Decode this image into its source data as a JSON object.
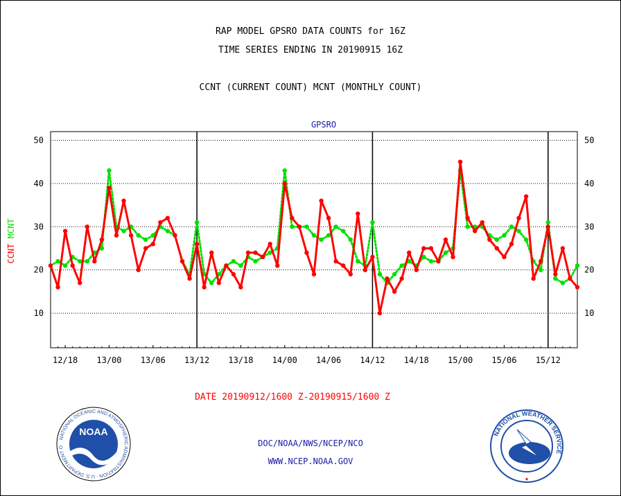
{
  "header": {
    "line1": "RAP MODEL GPSRO DATA COUNTS for 16Z",
    "line2": "TIME SERIES ENDING IN 20190915 16Z",
    "line3": "CCNT (CURRENT COUNT) MCNT (MONTHLY COUNT)"
  },
  "footer": {
    "date_range": "DATE 20190912/1600 Z-20190915/1600 Z",
    "org": "DOC/NOAA/NWS/NCEP/NCO",
    "url": "WWW.NCEP.NOAA.GOV"
  },
  "logos": {
    "left": {
      "name": "NOAA",
      "ring_text": "NATIONAL OCEANIC AND ATMOSPHERIC ADMINISTRATION · U.S. DEPARTMENT OF COMMERCE",
      "color": "#1f4fa8"
    },
    "right": {
      "ring_text": "NATIONAL WEATHER SERVICE",
      "color": "#1f4fa8"
    }
  },
  "chart_data": {
    "type": "line",
    "title": "GPSRO",
    "ylabel_parts": [
      {
        "text": "CCNT",
        "color": "#ff0000"
      },
      {
        "text": "MCNT",
        "color": "#00e000"
      }
    ],
    "ylim": [
      2,
      52
    ],
    "yticks": [
      10,
      20,
      30,
      40,
      50
    ],
    "grid": true,
    "x_hours_per_point": 1,
    "x_tick_labels": [
      "12/18",
      "13/00",
      "13/06",
      "13/12",
      "13/18",
      "14/00",
      "14/06",
      "14/12",
      "14/18",
      "15/00",
      "15/06",
      "15/12"
    ],
    "day_boundaries": [
      "13/12",
      "14/12",
      "15/12"
    ],
    "series": [
      {
        "name": "CCNT",
        "color": "#ff0000",
        "style": "solid",
        "values": [
          21,
          16,
          29,
          21,
          17,
          30,
          22,
          27,
          39,
          28,
          36,
          28,
          20,
          25,
          26,
          31,
          32,
          28,
          22,
          18,
          26,
          16,
          24,
          17,
          21,
          19,
          16,
          24,
          24,
          23,
          26,
          21,
          40,
          32,
          30,
          24,
          19,
          36,
          32,
          22,
          21,
          19,
          33,
          20,
          23,
          10,
          18,
          15,
          18,
          24,
          20,
          25,
          25,
          22,
          27,
          23,
          45,
          32,
          29,
          31,
          27,
          25,
          23,
          26,
          32,
          37,
          18,
          22,
          30,
          19,
          25,
          18,
          16
        ]
      },
      {
        "name": "MCNT",
        "color": "#00e000",
        "style": "dotted",
        "values": [
          21,
          22,
          21,
          23,
          22,
          22,
          24,
          25,
          43,
          30,
          29,
          30,
          28,
          27,
          28,
          30,
          29,
          28,
          22,
          19,
          31,
          19,
          17,
          19,
          21,
          22,
          21,
          23,
          22,
          23,
          24,
          25,
          43,
          30,
          30,
          30,
          28,
          27,
          28,
          30,
          29,
          27,
          22,
          21,
          31,
          19,
          17,
          19,
          21,
          22,
          21,
          23,
          22,
          22,
          24,
          25,
          43,
          30,
          30,
          30,
          28,
          27,
          28,
          30,
          29,
          27,
          22,
          20,
          31,
          18,
          17,
          18,
          21
        ]
      }
    ]
  }
}
